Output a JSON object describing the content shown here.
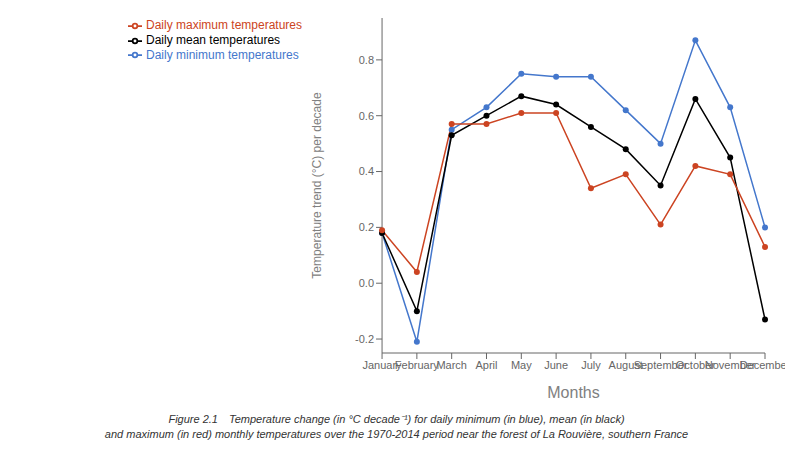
{
  "chart_data": {
    "type": "line",
    "categories": [
      "January",
      "February",
      "March",
      "April",
      "May",
      "June",
      "July",
      "August",
      "September",
      "October",
      "November",
      "December"
    ],
    "series": [
      {
        "name": "Daily minimum temperatures",
        "color": "#4477cc",
        "marker": "circle",
        "values": [
          0.18,
          -0.21,
          0.55,
          0.63,
          0.75,
          0.74,
          0.74,
          0.62,
          0.5,
          0.87,
          0.63,
          0.2
        ]
      },
      {
        "name": "Daily mean temperatures",
        "color": "#000000",
        "marker": "circle",
        "values": [
          0.18,
          -0.1,
          0.53,
          0.6,
          0.67,
          0.64,
          0.56,
          0.48,
          0.35,
          0.66,
          0.45,
          -0.13
        ]
      },
      {
        "name": "Daily maximum temperatures",
        "color": "#cc4422",
        "marker": "circle",
        "values": [
          0.19,
          0.04,
          0.57,
          0.57,
          0.61,
          0.61,
          0.34,
          0.39,
          0.21,
          0.42,
          0.39,
          0.13
        ]
      }
    ],
    "xlabel": "Months",
    "ylabel": "Temperature trend (°C) per decade",
    "ylim": [
      -0.25,
      0.95
    ],
    "yticks": [
      -0.2,
      {
        "value": 0,
        "label": "0.0"
      },
      0.2,
      0.4,
      0.6,
      0.8
    ],
    "legend": "upper left",
    "grid": false,
    "annotations": [
      "Figure 2.1 Temperature change (in °C decade⁻¹) for daily minimum (in blue), mean (in black)\nand maximum (in red) monthly temperatures over the 1970-2014 period near the forest of La Rouvière, southern France"
    ]
  }
}
